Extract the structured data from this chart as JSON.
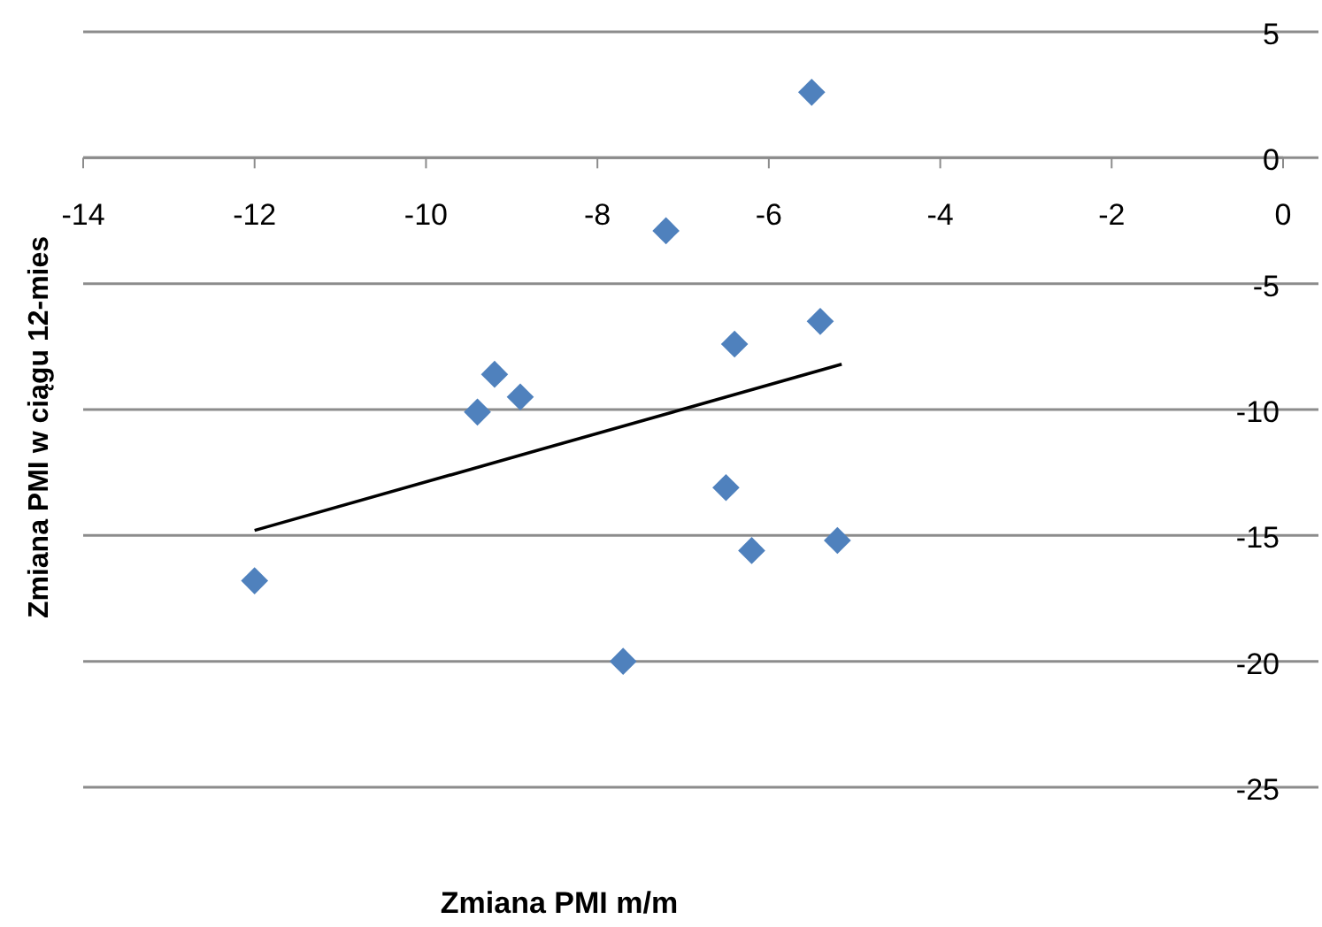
{
  "chart_data": {
    "type": "scatter",
    "xlabel": "Zmiana PMI m/m",
    "ylabel": "Zmiana PMI w ciągu  12-mies",
    "xlim": [
      -14,
      0
    ],
    "xticks": [
      -14,
      -12,
      -10,
      -8,
      -6,
      -4,
      -2,
      0
    ],
    "ylim": [
      -25,
      5
    ],
    "yticks": [
      -25,
      -20,
      -15,
      -10,
      -5,
      0,
      5
    ],
    "grid": "y",
    "marker": "diamond",
    "series": [
      {
        "color": "#4f81bd",
        "x": [
          -5.5,
          -7.2,
          -5.4,
          -6.4,
          -9.2,
          -8.9,
          -9.4,
          -12,
          -7.7,
          -6.5,
          -6.2,
          -5.2
        ],
        "values": [
          2.6,
          -2.9,
          -6.5,
          -7.4,
          -8.6,
          -9.5,
          -10.1,
          -16.8,
          -20,
          -13.1,
          -15.6,
          -15.2
        ]
      },
      {
        "type": "line",
        "color": "#000000",
        "line_style": "solid",
        "marker": "none",
        "x": [
          -12,
          -5.15
        ],
        "values": [
          -14.8,
          -8.2
        ]
      }
    ]
  }
}
